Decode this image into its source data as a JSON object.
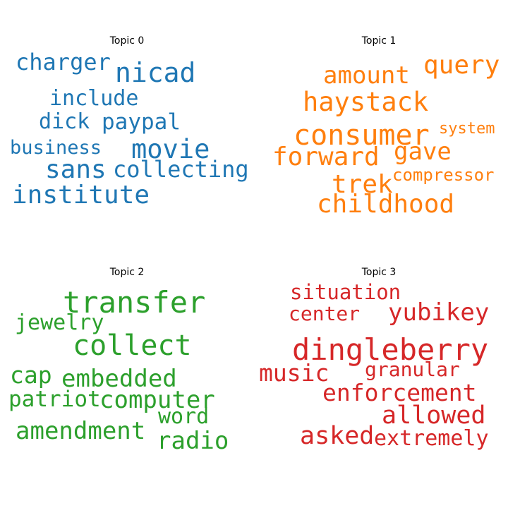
{
  "chart_data": [
    {
      "type": "wordcloud",
      "title": "Topic 0",
      "color": "#1f77b4",
      "words": [
        "charger",
        "nicad",
        "include",
        "dick",
        "paypal",
        "business",
        "movie",
        "sans",
        "collecting",
        "institute"
      ]
    },
    {
      "type": "wordcloud",
      "title": "Topic 1",
      "color": "#ff7f0e",
      "words": [
        "query",
        "amount",
        "haystack",
        "consumer",
        "system",
        "forward",
        "gave",
        "compressor",
        "trek",
        "childhood"
      ]
    },
    {
      "type": "wordcloud",
      "title": "Topic 2",
      "color": "#2ca02c",
      "words": [
        "transfer",
        "jewelry",
        "collect",
        "cap",
        "embedded",
        "patriot",
        "computer",
        "word",
        "amendment",
        "radio"
      ]
    },
    {
      "type": "wordcloud",
      "title": "Topic 3",
      "color": "#d62728",
      "words": [
        "situation",
        "center",
        "yubikey",
        "dingleberry",
        "music",
        "granular",
        "enforcement",
        "allowed",
        "asked",
        "extremely"
      ]
    }
  ]
}
